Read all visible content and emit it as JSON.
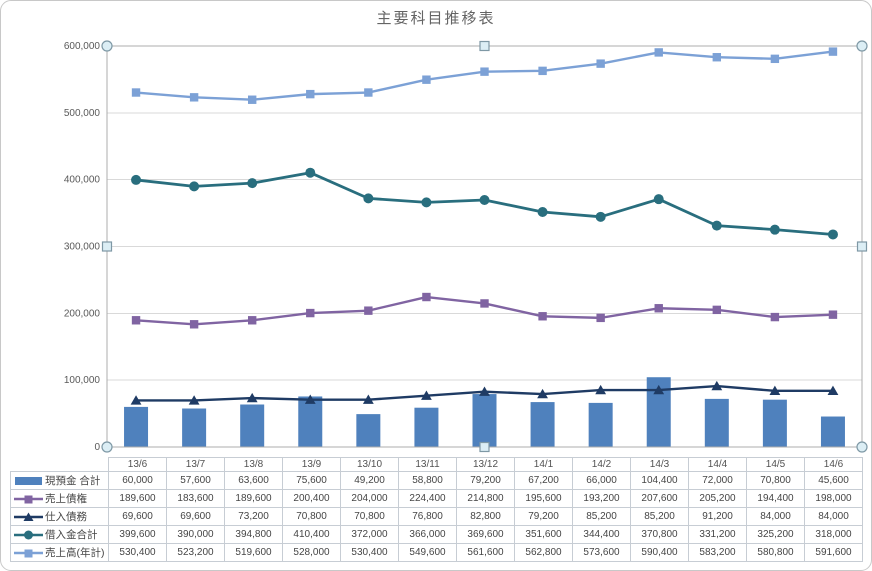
{
  "title": "主要科目推移表",
  "plot_area_selected": true,
  "colors": {
    "gridline": "#D9D9D9",
    "axis": "#9D9D9D",
    "tick_text": "#595959",
    "table_border": "#C7CDD4",
    "table_text": "#454545",
    "selection_border": "#ADADAD",
    "handle_fill": "#DCEEF5",
    "handle_stroke": "#7E98A5",
    "frame_border": "#C8C8C8"
  },
  "chart_data": {
    "type": "combo",
    "title": "主要科目推移表",
    "xlabel": "",
    "ylabel": "",
    "ylim": [
      0,
      600000
    ],
    "ytick_interval": 100000,
    "ytick_labels": [
      "0",
      "100,000",
      "200,000",
      "300,000",
      "400,000",
      "500,000",
      "600,000"
    ],
    "grid": "horizontal",
    "legend_position": "data-table",
    "data_table_shown": true,
    "categories": [
      "13/6",
      "13/7",
      "13/8",
      "13/9",
      "13/10",
      "13/11",
      "13/12",
      "14/1",
      "14/2",
      "14/3",
      "14/4",
      "14/5",
      "14/6"
    ],
    "series": [
      {
        "id": "cash-total",
        "name": "現預金 合計",
        "type": "bar",
        "marker": "none",
        "color": "#4F81BD",
        "values": [
          60000,
          57600,
          63600,
          75600,
          49200,
          58800,
          79200,
          67200,
          66000,
          104400,
          72000,
          70800,
          45600
        ]
      },
      {
        "id": "receivables",
        "name": "売上債権",
        "type": "line",
        "marker": "square",
        "color": "#8064A2",
        "values": [
          189600,
          183600,
          189600,
          200400,
          204000,
          224400,
          214800,
          195600,
          193200,
          207600,
          205200,
          194400,
          198000
        ]
      },
      {
        "id": "payables",
        "name": "仕入債務",
        "type": "line",
        "marker": "triangle",
        "color": "#1F3B64",
        "values": [
          69600,
          69600,
          73200,
          70800,
          70800,
          76800,
          82800,
          79200,
          85200,
          85200,
          91200,
          84000,
          84000
        ]
      },
      {
        "id": "borrowings-total",
        "name": "借入金合計",
        "type": "line",
        "marker": "circle",
        "color": "#296E7E",
        "values": [
          399600,
          390000,
          394800,
          410400,
          372000,
          366000,
          369600,
          351600,
          344400,
          370800,
          331200,
          325200,
          318000
        ]
      },
      {
        "id": "annual-sales",
        "name": "売上高(年計)",
        "type": "line",
        "marker": "square",
        "color": "#7CA1D6",
        "values": [
          530400,
          523200,
          519600,
          528000,
          530400,
          549600,
          561600,
          562800,
          573600,
          590400,
          583200,
          580800,
          591600
        ]
      }
    ]
  }
}
